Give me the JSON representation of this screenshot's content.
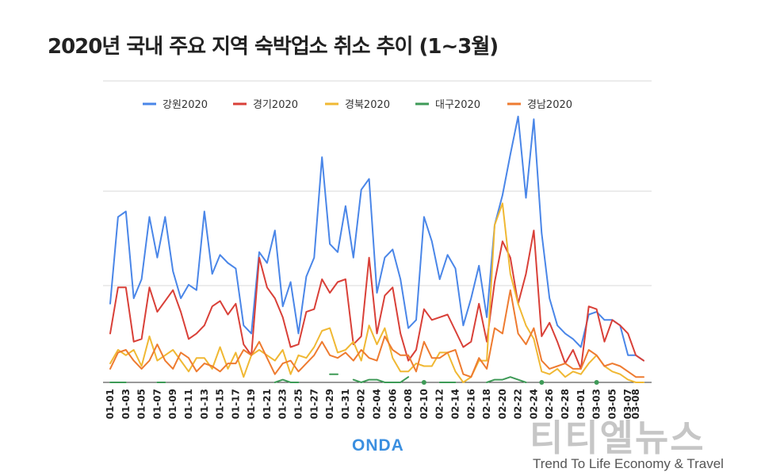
{
  "title": "2020년 국내 주요 지역 숙박업소 취소 추이 (1~3월)",
  "brand": "ONDA",
  "watermark": {
    "name": "티티엘뉴스",
    "tagline": "Trend To Life Economy & Travel"
  },
  "chart_data": {
    "type": "line",
    "title": "2020년 국내 주요 지역 숙박업소 취소 추이 (1~3월)",
    "ylim": [
      0,
      100
    ],
    "grid": true,
    "legend_position": "top",
    "x": [
      "01-01",
      "01-02",
      "01-03",
      "01-04",
      "01-05",
      "01-06",
      "01-07",
      "01-08",
      "01-09",
      "01-10",
      "01-11",
      "01-12",
      "01-13",
      "01-14",
      "01-15",
      "01-16",
      "01-17",
      "01-18",
      "01-19",
      "01-20",
      "01-21",
      "01-22",
      "01-23",
      "01-24",
      "01-25",
      "01-26",
      "01-27",
      "01-28",
      "01-29",
      "01-30",
      "01-31",
      "02-01",
      "02-02",
      "02-03",
      "02-04",
      "02-05",
      "02-06",
      "02-07",
      "02-08",
      "02-09",
      "02-10",
      "02-11",
      "02-12",
      "02-13",
      "02-14",
      "02-15",
      "02-16",
      "02-17",
      "02-18",
      "02-19",
      "02-20",
      "02-21",
      "02-22",
      "02-23",
      "02-24",
      "02-25",
      "02-26",
      "02-27",
      "02-28",
      "02-29",
      "03-01",
      "03-02",
      "03-03",
      "03-04",
      "03-05",
      "03-06",
      "03-07",
      "03-08",
      "03-09"
    ],
    "x_tick_labels": [
      "01-01",
      "01-03",
      "01-05",
      "01-07",
      "01-09",
      "01-11",
      "01-13",
      "01-15",
      "01-17",
      "01-19",
      "01-21",
      "01-23",
      "01-25",
      "01-27",
      "01-29",
      "01-31",
      "02-02",
      "02-04",
      "02-06",
      "02-08",
      "02-10",
      "02-12",
      "02-14",
      "02-16",
      "02-18",
      "02-20",
      "02-22",
      "02-24",
      "02-26",
      "02-28",
      "03-01",
      "03-03",
      "03-05",
      "03-07",
      "03-08"
    ],
    "series": [
      {
        "name": "강원2020",
        "color": "#4a86e8",
        "values": [
          29,
          61,
          63,
          31,
          38,
          61,
          46,
          61,
          41,
          31,
          36,
          34,
          63,
          40,
          47,
          44,
          42,
          21,
          18,
          48,
          44,
          56,
          28,
          37,
          18,
          39,
          46,
          83,
          51,
          48,
          65,
          46,
          71,
          75,
          33,
          46,
          49,
          38,
          20,
          23,
          61,
          52,
          38,
          47,
          42,
          21,
          31,
          43,
          24,
          58,
          69,
          84,
          98,
          68,
          97,
          55,
          31,
          21,
          18,
          16,
          13,
          25,
          26,
          23,
          23,
          21,
          10,
          10,
          8
        ],
        "markers": []
      },
      {
        "name": "경기2020",
        "color": "#d94038",
        "values": [
          18,
          35,
          35,
          15,
          16,
          35,
          26,
          30,
          34,
          26,
          16,
          18,
          21,
          28,
          30,
          25,
          29,
          14,
          10,
          46,
          35,
          31,
          24,
          13,
          14,
          26,
          27,
          38,
          33,
          37,
          38,
          14,
          17,
          46,
          18,
          32,
          35,
          18,
          8,
          12,
          27,
          23,
          24,
          25,
          19,
          13,
          15,
          29,
          15,
          37,
          52,
          46,
          29,
          40,
          56,
          17,
          22,
          15,
          7,
          12,
          5,
          28,
          27,
          15,
          23,
          21,
          18,
          10,
          8
        ],
        "markers": []
      },
      {
        "name": "경북2020",
        "color": "#f0b833",
        "values": [
          7,
          12,
          10,
          12,
          6,
          17,
          8,
          10,
          12,
          8,
          4,
          9,
          9,
          5,
          13,
          5,
          11,
          2,
          10,
          12,
          10,
          8,
          12,
          3,
          10,
          9,
          13,
          19,
          20,
          11,
          12,
          15,
          8,
          21,
          14,
          20,
          9,
          4,
          4,
          7,
          6,
          6,
          11,
          11,
          4,
          0,
          2,
          8,
          8,
          58,
          66,
          40,
          29,
          21,
          16,
          4,
          3,
          5,
          2,
          4,
          3,
          7,
          10,
          6,
          4,
          3,
          1,
          0,
          0
        ],
        "markers": []
      },
      {
        "name": "대구2020",
        "color": "#3e9a57",
        "values": [
          0,
          0,
          0,
          null,
          null,
          null,
          0,
          0,
          null,
          null,
          2,
          null,
          null,
          null,
          null,
          null,
          null,
          null,
          null,
          null,
          null,
          0,
          1,
          0,
          0,
          null,
          0,
          null,
          3,
          3,
          null,
          1,
          0,
          1,
          1,
          0,
          0,
          0,
          2,
          null,
          0,
          null,
          0,
          0,
          0,
          null,
          null,
          null,
          0,
          1,
          1,
          2,
          1,
          0,
          null,
          null,
          null,
          null,
          null,
          null,
          null,
          null,
          null,
          null,
          null,
          null,
          null,
          null,
          null
        ],
        "markers": [
          "02-10",
          "02-25",
          "03-03"
        ]
      },
      {
        "name": "경남2020",
        "color": "#ee7b30",
        "values": [
          5,
          11,
          12,
          8,
          5,
          8,
          14,
          8,
          5,
          11,
          9,
          4,
          7,
          6,
          4,
          7,
          7,
          12,
          10,
          15,
          9,
          3,
          7,
          8,
          4,
          7,
          10,
          15,
          10,
          9,
          11,
          8,
          12,
          9,
          8,
          17,
          12,
          10,
          10,
          4,
          15,
          9,
          9,
          11,
          12,
          3,
          2,
          9,
          5,
          20,
          18,
          34,
          18,
          14,
          20,
          8,
          5,
          6,
          7,
          5,
          5,
          12,
          10,
          6,
          7,
          6,
          4,
          2,
          2
        ],
        "markers": []
      }
    ]
  }
}
